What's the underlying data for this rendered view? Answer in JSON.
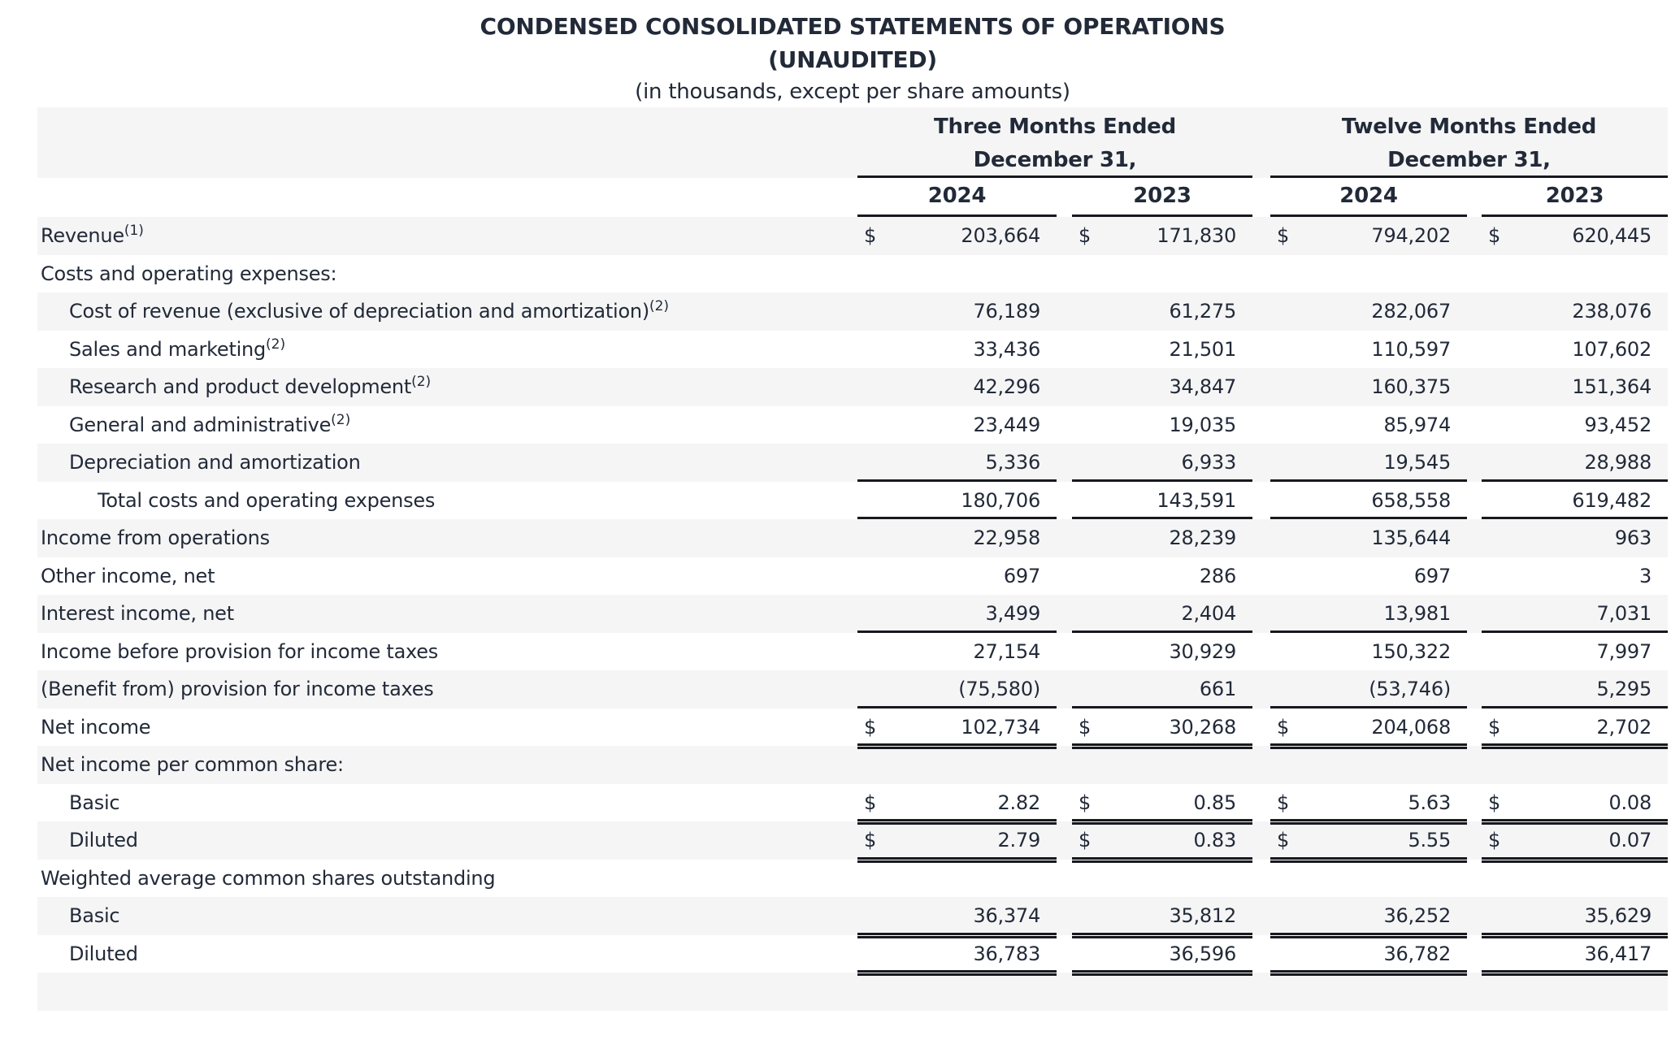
{
  "meta": {
    "dollar_sign": "$"
  },
  "colors": {
    "text": "#222a38",
    "stripe": "#f5f5f6",
    "line": "#17191e"
  },
  "title": {
    "line1": "CONDENSED CONSOLIDATED STATEMENTS OF OPERATIONS",
    "line2": "(UNAUDITED)",
    "line3": "(in thousands, except per share amounts)"
  },
  "header": {
    "groups": [
      {
        "period": "Three Months Ended",
        "date": "December 31,",
        "years": [
          "2024",
          "2023"
        ]
      },
      {
        "period": "Twelve Months Ended",
        "date": "December 31,",
        "years": [
          "2024",
          "2023"
        ]
      }
    ]
  },
  "rows": [
    {
      "label": "Revenue",
      "sup": "(1)",
      "indent": 0,
      "dollar": true,
      "shade": "gray",
      "border": "none",
      "values": [
        "203,664",
        "171,830",
        "794,202",
        "620,445"
      ]
    },
    {
      "label": "Costs and operating expenses:",
      "sup": "",
      "indent": 0,
      "dollar": false,
      "shade": "white",
      "border": "none",
      "values": [
        "",
        "",
        "",
        ""
      ]
    },
    {
      "label": "Cost of revenue (exclusive of depreciation and amortization)",
      "sup": "(2)",
      "indent": 1,
      "dollar": false,
      "shade": "gray",
      "border": "none",
      "values": [
        "76,189",
        "61,275",
        "282,067",
        "238,076"
      ]
    },
    {
      "label": "Sales and marketing",
      "sup": "(2)",
      "indent": 1,
      "dollar": false,
      "shade": "white",
      "border": "none",
      "values": [
        "33,436",
        "21,501",
        "110,597",
        "107,602"
      ]
    },
    {
      "label": "Research and product development",
      "sup": "(2)",
      "indent": 1,
      "dollar": false,
      "shade": "gray",
      "border": "none",
      "values": [
        "42,296",
        "34,847",
        "160,375",
        "151,364"
      ]
    },
    {
      "label": "General and administrative",
      "sup": "(2)",
      "indent": 1,
      "dollar": false,
      "shade": "white",
      "border": "none",
      "values": [
        "23,449",
        "19,035",
        "85,974",
        "93,452"
      ]
    },
    {
      "label": "Depreciation and amortization",
      "sup": "",
      "indent": 1,
      "dollar": false,
      "shade": "gray",
      "border": "single",
      "values": [
        "5,336",
        "6,933",
        "19,545",
        "28,988"
      ]
    },
    {
      "label": "Total costs and operating expenses",
      "sup": "",
      "indent": 2,
      "dollar": false,
      "shade": "white",
      "border": "single",
      "values": [
        "180,706",
        "143,591",
        "658,558",
        "619,482"
      ]
    },
    {
      "label": "Income from operations",
      "sup": "",
      "indent": 0,
      "dollar": false,
      "shade": "gray",
      "border": "none",
      "values": [
        "22,958",
        "28,239",
        "135,644",
        "963"
      ]
    },
    {
      "label": "Other income, net",
      "sup": "",
      "indent": 0,
      "dollar": false,
      "shade": "white",
      "border": "none",
      "values": [
        "697",
        "286",
        "697",
        "3"
      ]
    },
    {
      "label": "Interest income, net",
      "sup": "",
      "indent": 0,
      "dollar": false,
      "shade": "gray",
      "border": "single",
      "values": [
        "3,499",
        "2,404",
        "13,981",
        "7,031"
      ]
    },
    {
      "label": "Income before provision for income taxes",
      "sup": "",
      "indent": 0,
      "dollar": false,
      "shade": "white",
      "border": "none",
      "values": [
        "27,154",
        "30,929",
        "150,322",
        "7,997"
      ]
    },
    {
      "label": "(Benefit from) provision for income taxes",
      "sup": "",
      "indent": 0,
      "dollar": false,
      "shade": "gray",
      "border": "single",
      "values": [
        "(75,580)",
        "661",
        "(53,746)",
        "5,295"
      ]
    },
    {
      "label": "Net income",
      "sup": "",
      "indent": 0,
      "dollar": true,
      "shade": "white",
      "border": "double",
      "values": [
        "102,734",
        "30,268",
        "204,068",
        "2,702"
      ]
    },
    {
      "label": "Net income per common share:",
      "sup": "",
      "indent": 0,
      "dollar": false,
      "shade": "gray",
      "border": "none",
      "values": [
        "",
        "",
        "",
        ""
      ]
    },
    {
      "label": "Basic",
      "sup": "",
      "indent": 1,
      "dollar": true,
      "shade": "white",
      "border": "double",
      "values": [
        "2.82",
        "0.85",
        "5.63",
        "0.08"
      ]
    },
    {
      "label": "Diluted",
      "sup": "",
      "indent": 1,
      "dollar": true,
      "shade": "gray",
      "border": "double",
      "values": [
        "2.79",
        "0.83",
        "5.55",
        "0.07"
      ]
    },
    {
      "label": "Weighted average common shares outstanding",
      "sup": "",
      "indent": 0,
      "dollar": false,
      "shade": "white",
      "border": "none",
      "values": [
        "",
        "",
        "",
        ""
      ]
    },
    {
      "label": "Basic",
      "sup": "",
      "indent": 1,
      "dollar": false,
      "shade": "gray",
      "border": "double",
      "values": [
        "36,374",
        "35,812",
        "36,252",
        "35,629"
      ]
    },
    {
      "label": "Diluted",
      "sup": "",
      "indent": 1,
      "dollar": false,
      "shade": "white",
      "border": "double",
      "values": [
        "36,783",
        "36,596",
        "36,782",
        "36,417"
      ]
    },
    {
      "label": "",
      "sup": "",
      "indent": 0,
      "dollar": false,
      "shade": "gray",
      "border": "none",
      "values": [
        "",
        "",
        "",
        ""
      ]
    }
  ]
}
